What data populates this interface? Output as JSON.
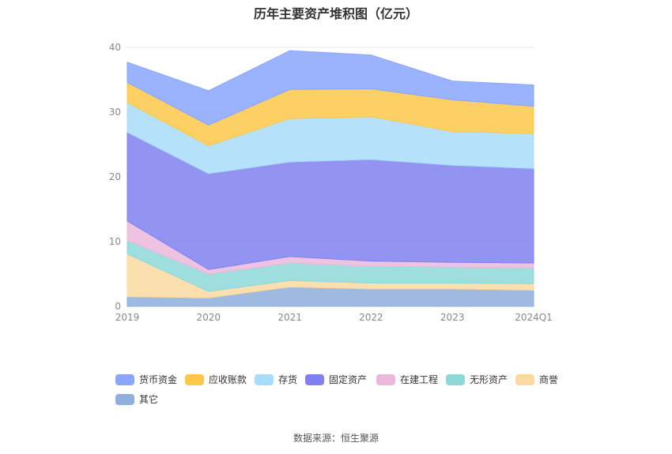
{
  "title": "历年主要资产堆积图（亿元）",
  "source": "数据来源：恒生聚源",
  "chart_data": {
    "type": "area",
    "stacked": true,
    "categories": [
      "2019",
      "2020",
      "2021",
      "2022",
      "2023",
      "2024Q1"
    ],
    "ylim": [
      0,
      40
    ],
    "yticks": [
      0,
      10,
      20,
      30,
      40
    ],
    "grid": true,
    "legend_position": "bottom",
    "series": [
      {
        "name": "其它",
        "color": "#8eaedc",
        "values": [
          1.5,
          1.3,
          3.0,
          2.7,
          2.7,
          2.5
        ]
      },
      {
        "name": "商誉",
        "color": "#fcd9a0",
        "values": [
          6.6,
          1.0,
          1.0,
          0.9,
          0.9,
          1.0
        ]
      },
      {
        "name": "无形资产",
        "color": "#8ed8d8",
        "values": [
          2.1,
          2.7,
          2.7,
          2.6,
          2.5,
          2.4
        ]
      },
      {
        "name": "在建工程",
        "color": "#ebb8dc",
        "values": [
          3.0,
          0.7,
          1.0,
          0.8,
          0.7,
          0.8
        ]
      },
      {
        "name": "固定资产",
        "color": "#8080f0",
        "values": [
          13.7,
          14.8,
          14.6,
          15.7,
          15.0,
          14.6
        ]
      },
      {
        "name": "存货",
        "color": "#a8dcfa",
        "values": [
          4.6,
          4.3,
          6.7,
          6.6,
          5.2,
          5.4
        ]
      },
      {
        "name": "应收账款",
        "color": "#fdc84a",
        "values": [
          3.1,
          3.2,
          4.5,
          4.3,
          4.9,
          4.2
        ]
      },
      {
        "name": "货币资金",
        "color": "#8aa6fb",
        "values": [
          3.1,
          5.3,
          6.0,
          5.2,
          2.9,
          3.3
        ]
      }
    ]
  },
  "legend": {
    "order": [
      "货币资金",
      "应收账款",
      "存货",
      "固定资产",
      "在建工程",
      "无形资产",
      "商誉",
      "其它"
    ]
  }
}
